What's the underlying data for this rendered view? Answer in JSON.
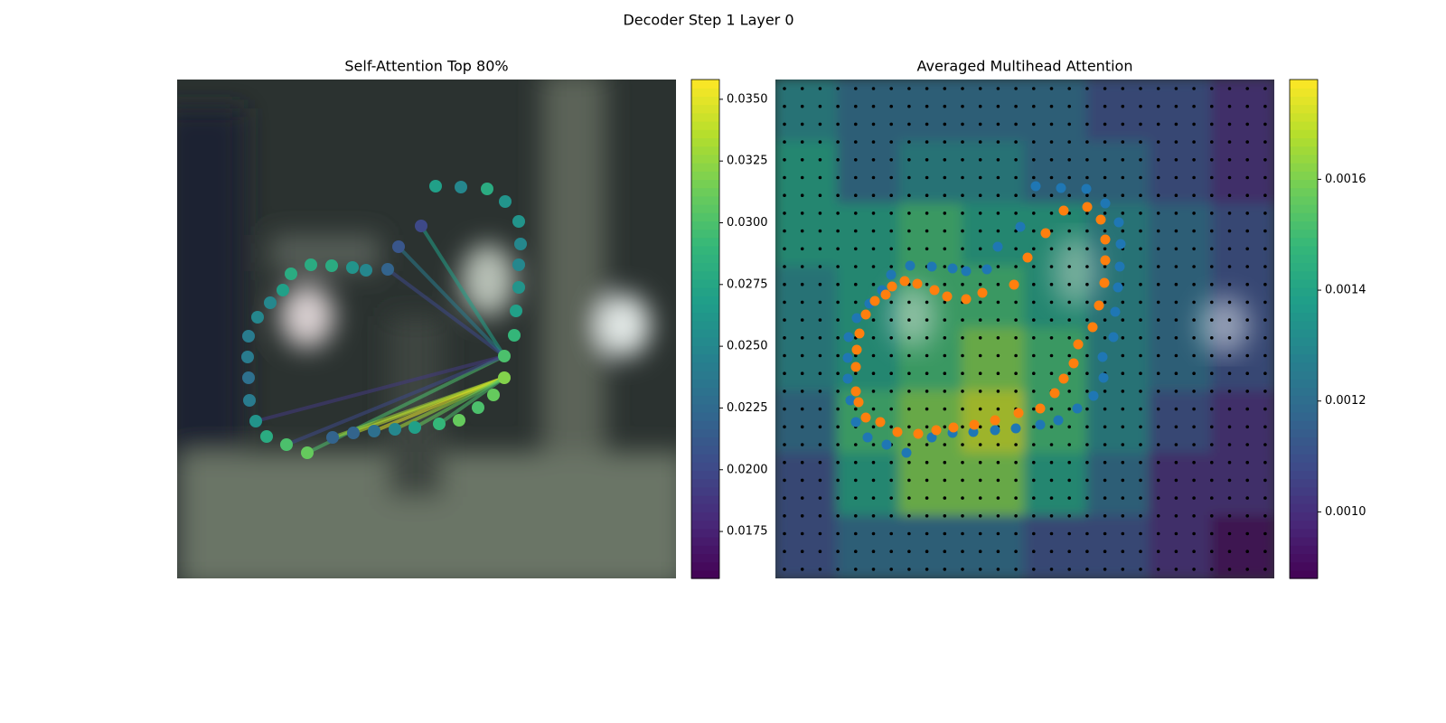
{
  "title": "Decoder Step 1 Layer 0",
  "chart_data": [
    {
      "type": "scatter",
      "title": "Self-Attention Top 80%",
      "xlim": [
        0,
        552
      ],
      "ylim": [
        552,
        0
      ],
      "x": [
        286,
        314,
        343,
        363,
        378,
        380,
        378,
        378,
        375,
        373,
        362,
        362,
        350,
        333,
        312,
        290,
        263,
        241,
        218,
        195,
        172,
        144,
        121,
        99,
        87,
        80,
        79,
        78,
        79,
        89,
        103,
        117,
        126,
        148,
        171,
        194,
        209,
        233,
        245,
        270
      ],
      "y": [
        118,
        119,
        121,
        135,
        157,
        182,
        205,
        230,
        256,
        283,
        306,
        330,
        349,
        363,
        377,
        381,
        385,
        387,
        389,
        391,
        396,
        413,
        404,
        395,
        378,
        355,
        330,
        307,
        284,
        263,
        247,
        233,
        215,
        205,
        206,
        208,
        211,
        210,
        185,
        162
      ],
      "values": [
        0.027,
        0.025,
        0.028,
        0.026,
        0.026,
        0.025,
        0.025,
        0.026,
        0.027,
        0.029,
        0.03,
        0.032,
        0.031,
        0.03,
        0.031,
        0.029,
        0.027,
        0.025,
        0.023,
        0.022,
        0.022,
        0.031,
        0.03,
        0.028,
        0.026,
        0.024,
        0.023,
        0.024,
        0.024,
        0.025,
        0.025,
        0.027,
        0.028,
        0.028,
        0.028,
        0.026,
        0.025,
        0.022,
        0.021,
        0.02
      ],
      "edges": {
        "source": [
          10,
          10,
          10,
          10,
          11,
          11,
          11,
          11,
          11,
          11,
          10,
          10
        ],
        "target": [
          39,
          38,
          37,
          21,
          20,
          19,
          18,
          17,
          16,
          15,
          22,
          24
        ],
        "values": [
          0.027,
          0.024,
          0.02,
          0.03,
          0.033,
          0.034,
          0.035,
          0.033,
          0.031,
          0.03,
          0.02,
          0.019
        ]
      },
      "colorbar": {
        "lim": [
          0.0156,
          0.0358
        ],
        "ticks": [
          {
            "value": 0.0175,
            "label": "0.0175"
          },
          {
            "value": 0.02,
            "label": "0.0200"
          },
          {
            "value": 0.0225,
            "label": "0.0225"
          },
          {
            "value": 0.025,
            "label": "0.0250"
          },
          {
            "value": 0.0275,
            "label": "0.0275"
          },
          {
            "value": 0.03,
            "label": "0.0300"
          },
          {
            "value": 0.0325,
            "label": "0.0325"
          },
          {
            "value": 0.035,
            "label": "0.0350"
          }
        ]
      }
    },
    {
      "type": "heatmap",
      "title": "Averaged Multihead Attention",
      "xlim": [
        0,
        552
      ],
      "ylim": [
        552,
        0
      ],
      "grid_values": [
        [
          0.0013,
          0.0012,
          0.0012,
          0.0012,
          0.0012,
          0.0011,
          0.0011,
          0.001
        ],
        [
          0.0014,
          0.0012,
          0.0013,
          0.0013,
          0.0012,
          0.0012,
          0.0011,
          0.001
        ],
        [
          0.0014,
          0.0014,
          0.0015,
          0.0014,
          0.0014,
          0.0013,
          0.0012,
          0.0011
        ],
        [
          0.0013,
          0.0014,
          0.0015,
          0.0015,
          0.0014,
          0.0013,
          0.0012,
          0.0011
        ],
        [
          0.0013,
          0.0014,
          0.0015,
          0.0016,
          0.0015,
          0.0013,
          0.0012,
          0.0011
        ],
        [
          0.0012,
          0.0015,
          0.0016,
          0.0017,
          0.0015,
          0.0013,
          0.0011,
          0.001
        ],
        [
          0.0011,
          0.0014,
          0.0016,
          0.0016,
          0.0014,
          0.0012,
          0.001,
          0.001
        ],
        [
          0.0011,
          0.0012,
          0.0012,
          0.0012,
          0.0011,
          0.0011,
          0.001,
          0.0009
        ]
      ],
      "series": [
        {
          "color": "#1f77b4",
          "x": [
            288,
            316,
            344,
            365,
            380,
            382,
            381,
            379,
            376,
            374,
            362,
            363,
            352,
            334,
            313,
            293,
            266,
            243,
            219,
            196,
            173,
            145,
            123,
            102,
            89,
            83,
            80,
            80,
            81,
            90,
            104,
            118,
            128,
            149,
            173,
            196,
            211,
            234,
            246,
            271
          ],
          "y": [
            118,
            120,
            121,
            137,
            158,
            182,
            207,
            230,
            257,
            285,
            307,
            330,
            350,
            364,
            377,
            382,
            386,
            388,
            390,
            391,
            396,
            413,
            404,
            396,
            379,
            355,
            331,
            308,
            285,
            264,
            248,
            233,
            216,
            206,
            207,
            209,
            212,
            210,
            185,
            163
          ]
        },
        {
          "color": "#ff7f0e",
          "x": [
            319,
            345,
            360,
            365,
            365,
            364,
            358,
            351,
            335,
            330,
            319,
            309,
            293,
            269,
            243,
            220,
            197,
            178,
            158,
            135,
            116,
            100,
            92,
            89,
            89,
            90,
            93,
            100,
            110,
            122,
            129,
            143,
            157,
            176,
            190,
            211,
            229,
            264,
            279,
            299
          ],
          "y": [
            145,
            141,
            155,
            177,
            200,
            225,
            250,
            274,
            293,
            314,
            331,
            347,
            364,
            369,
            377,
            382,
            385,
            388,
            392,
            390,
            379,
            374,
            357,
            345,
            318,
            299,
            281,
            260,
            245,
            238,
            229,
            223,
            226,
            233,
            240,
            243,
            236,
            227,
            197,
            170
          ]
        }
      ],
      "colorbar": {
        "lim": [
          0.00088,
          0.00178
        ],
        "ticks": [
          {
            "value": 0.001,
            "label": "0.0010"
          },
          {
            "value": 0.0012,
            "label": "0.0012"
          },
          {
            "value": 0.0014,
            "label": "0.0014"
          },
          {
            "value": 0.0016,
            "label": "0.0016"
          }
        ]
      }
    }
  ]
}
